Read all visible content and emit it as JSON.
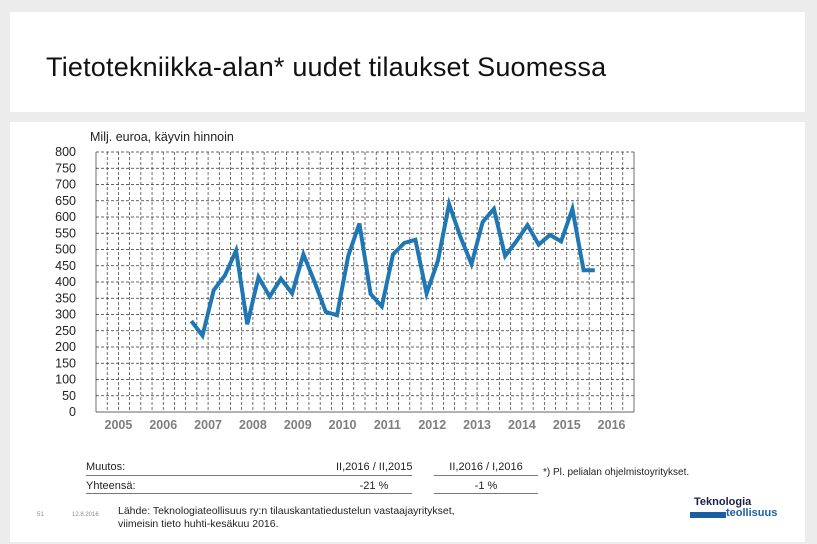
{
  "slide": {
    "title": "Tietotekniikka-alan* uudet tilaukset Suomessa",
    "footnote": "*) Pl. pelialan ohjelmistoyritykset.",
    "page_number": "51",
    "date": "12.8.2016"
  },
  "table": {
    "row1_label": "Muutos:",
    "row2_label": "Yhteensä:",
    "col1_header": "II,2016 / II,2015",
    "col2_header": "II,2016 / I,2016",
    "col1_value": "-21 %",
    "col2_value": "-1 %"
  },
  "source": {
    "line1": "Lähde: Teknologiateollisuus ry:n tilauskantatiedustelun vastaajayritykset,",
    "line2": "viimeisin tieto huhti-kesäkuu 2016."
  },
  "logo": {
    "line1": "Teknologia",
    "line2": "teollisuus"
  },
  "colors": {
    "series": "#1f77b4",
    "grid": "#333333",
    "axis_labels": "#222222",
    "year_labels": "#7f7f7f"
  },
  "chart_data": {
    "type": "line",
    "title": "",
    "ylabel": "Milj. euroa, käyvin hinnoin",
    "xlabel": "",
    "ylim": [
      0,
      800
    ],
    "ytick_step": 50,
    "grid": true,
    "x_start_year": 2005,
    "periods_per_year": 4,
    "year_labels": [
      "2005",
      "2006",
      "2007",
      "2008",
      "2009",
      "2010",
      "2011",
      "2012",
      "2013",
      "2014",
      "2015",
      "2016"
    ],
    "series": [
      {
        "name": "",
        "start": "2007 Q1",
        "values": [
          280,
          235,
          375,
          420,
          497,
          270,
          415,
          355,
          410,
          365,
          485,
          400,
          308,
          298,
          480,
          580,
          363,
          325,
          485,
          520,
          530,
          365,
          465,
          640,
          540,
          455,
          585,
          625,
          480,
          525,
          575,
          515,
          545,
          525,
          625,
          436,
          436
        ]
      }
    ]
  }
}
